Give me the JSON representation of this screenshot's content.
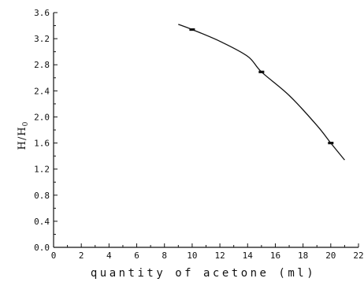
{
  "chart_data": {
    "type": "line",
    "xlabel": "quantity of acetone (ml)",
    "ylabel": {
      "main": "H/H",
      "subscript": "0"
    },
    "xlim": [
      0,
      22
    ],
    "ylim": [
      0,
      3.6
    ],
    "x_ticks": [
      "0",
      "2",
      "4",
      "6",
      "8",
      "10",
      "12",
      "14",
      "16",
      "18",
      "20",
      "22"
    ],
    "y_ticks": [
      "0.0",
      "0.4",
      "0.8",
      "1.2",
      "1.6",
      "2.0",
      "2.4",
      "2.8",
      "3.2",
      "3.6"
    ],
    "grid": false,
    "series": [
      {
        "markers": [
          {
            "x": 10,
            "y": 3.34
          },
          {
            "x": 15,
            "y": 2.69
          },
          {
            "x": 20,
            "y": 1.6
          }
        ],
        "curve": [
          {
            "x": 9,
            "y": 3.42
          },
          {
            "x": 10,
            "y": 3.34
          },
          {
            "x": 12,
            "y": 3.16
          },
          {
            "x": 14,
            "y": 2.93
          },
          {
            "x": 15,
            "y": 2.69
          },
          {
            "x": 17,
            "y": 2.33
          },
          {
            "x": 19,
            "y": 1.87
          },
          {
            "x": 20,
            "y": 1.6
          },
          {
            "x": 21,
            "y": 1.34
          }
        ]
      }
    ]
  }
}
